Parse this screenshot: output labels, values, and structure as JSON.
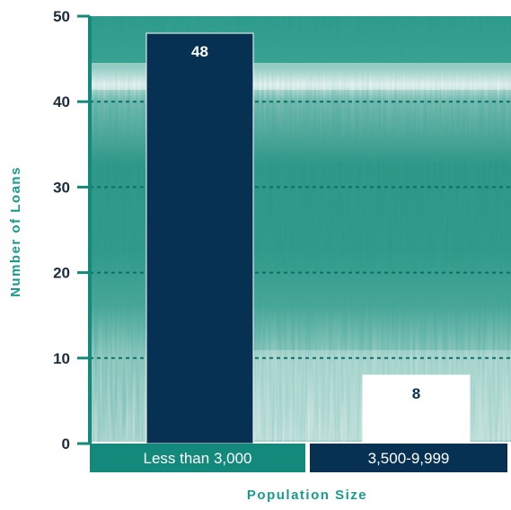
{
  "chart_data": {
    "type": "bar",
    "categories": [
      "Less than 3,000",
      "3,500-9,999"
    ],
    "values": [
      48,
      8
    ],
    "xlabel": "Population Size",
    "ylabel": "Number of Loans",
    "ylim": [
      0,
      50
    ],
    "yticks": [
      0,
      10,
      20,
      30,
      40,
      50
    ],
    "grid": true,
    "background": "photo of green wetland grasses and water",
    "colors": {
      "accent": "#12897a",
      "bar_dark": "#063152",
      "bar_light": "#ffffff",
      "grid_line": "#0d6e63",
      "category_bands": [
        "#12897a",
        "#063152"
      ]
    }
  }
}
